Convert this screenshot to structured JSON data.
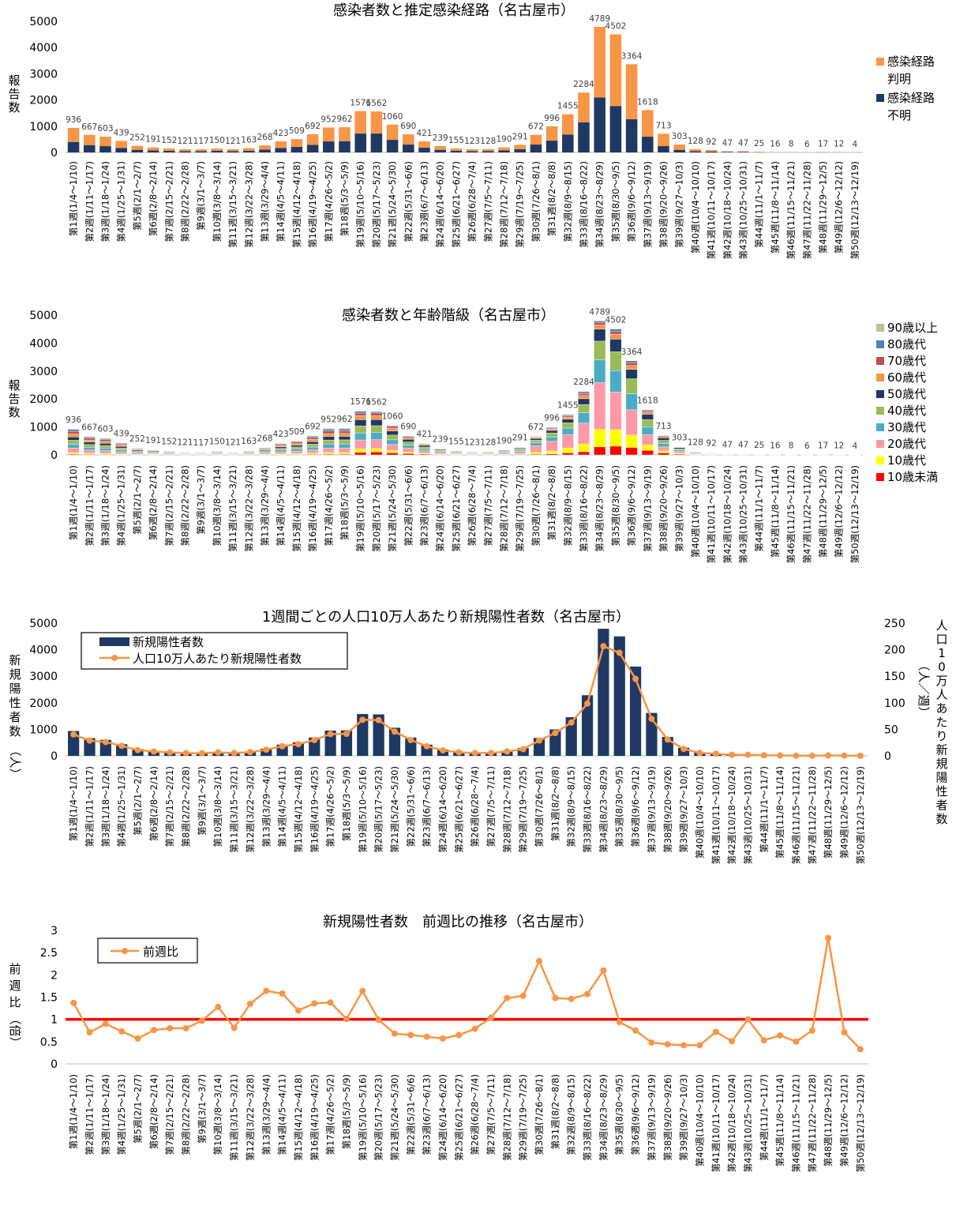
{
  "weeks": [
    "第1週(1/4～1/10)",
    "第2週(1/11～1/17)",
    "第3週(1/18～1/24)",
    "第4週(1/25～1/31)",
    "第5週(2/1～2/7)",
    "第6週(2/8～2/14)",
    "第7週(2/15～2/21)",
    "第8週(2/22～2/28)",
    "第9週(3/1～3/7)",
    "第10週(3/8～3/14)",
    "第11週(3/15～3/21)",
    "第12週(3/22～3/28)",
    "第13週(3/29～4/4)",
    "第14週(4/5～4/11)",
    "第15週(4/12～4/18)",
    "第16週(4/19～4/25)",
    "第17週(4/26～5/2)",
    "第18週(5/3～5/9)",
    "第19週(5/10～5/16)",
    "第20週(5/17～5/23)",
    "第21週(5/24～5/30)",
    "第22週(5/31～6/6)",
    "第23週(6/7～6/13)",
    "第24週(6/14～6/20)",
    "第25週(6/21～6/27)",
    "第26週(6/28～7/4)",
    "第27週(7/5～7/11)",
    "第28週(7/12～7/18)",
    "第29週(7/19～7/25)",
    "第30週(7/26～8/1)",
    "第31週(8/2～8/8)",
    "第32週(8/9～8/15)",
    "第33週(8/16～8/22)",
    "第34週(8/23～8/29)",
    "第35週(8/30～9/5)",
    "第36週(9/6～9/12)",
    "第37週(9/13～9/19)",
    "第38週(9/20～9/26)",
    "第39週(9/27～10/3)",
    "第40週(10/4～10/10)",
    "第41週(10/11～10/17)",
    "第42週(10/18～10/24)",
    "第43週(10/25～10/31)",
    "第44週(11/1～11/7)",
    "第45週(11/8～11/14)",
    "第46週(11/15～11/21)",
    "第47週(11/22～11/28)",
    "第48週(11/29～12/5)",
    "第49週(12/6～12/12)",
    "第50週(12/13～12/19)"
  ],
  "totals": [
    936,
    667,
    603,
    439,
    252,
    191,
    152,
    121,
    117,
    150,
    121,
    163,
    268,
    423,
    509,
    692,
    952,
    962,
    1576,
    1562,
    1060,
    690,
    421,
    239,
    155,
    123,
    128,
    190,
    291,
    672,
    996,
    1455,
    2284,
    4789,
    4502,
    3364,
    1618,
    713,
    303,
    128,
    92,
    47,
    47,
    25,
    16,
    8,
    6,
    17,
    12,
    4
  ],
  "chart_data": [
    {
      "type": "bar",
      "stacked": true,
      "title": "感染者数と推定感染経路（名古屋市）",
      "ylabel": "報告数",
      "ylim": [
        0,
        5000
      ],
      "yticks": [
        0,
        1000,
        2000,
        3000,
        4000,
        5000
      ],
      "legend_position": "right",
      "series": [
        {
          "name": "感染経路不明",
          "color": "#203864",
          "values": [
            400,
            280,
            240,
            170,
            100,
            80,
            60,
            50,
            45,
            60,
            50,
            65,
            110,
            170,
            210,
            290,
            420,
            430,
            720,
            720,
            480,
            300,
            180,
            100,
            65,
            50,
            55,
            80,
            120,
            300,
            450,
            680,
            1150,
            2100,
            1770,
            1270,
            600,
            240,
            100,
            45,
            32,
            16,
            15,
            8,
            5,
            3,
            2,
            6,
            4,
            1
          ]
        },
        {
          "name": "感染経路判明",
          "color": "#F79646",
          "values": [
            536,
            387,
            363,
            269,
            152,
            111,
            92,
            71,
            72,
            90,
            71,
            98,
            158,
            253,
            299,
            402,
            532,
            532,
            856,
            842,
            580,
            390,
            241,
            139,
            90,
            73,
            73,
            110,
            171,
            372,
            546,
            775,
            1134,
            2689,
            2732,
            2094,
            1018,
            473,
            203,
            83,
            60,
            31,
            32,
            17,
            11,
            5,
            4,
            11,
            8,
            3
          ]
        }
      ]
    },
    {
      "type": "bar",
      "stacked": true,
      "title": "感染者数と年齢階級（名古屋市）",
      "ylabel": "報告数",
      "ylim": [
        0,
        5000
      ],
      "yticks": [
        0,
        1000,
        2000,
        3000,
        4000,
        5000
      ],
      "legend_position": "right",
      "age_groups": [
        {
          "name": "10歳未満",
          "color": "#FF0000",
          "share": [
            0.03,
            0.03,
            0.03,
            0.03,
            0.03,
            0.03,
            0.03,
            0.03,
            0.03,
            0.03,
            0.03,
            0.03,
            0.03,
            0.03,
            0.03,
            0.03,
            0.03,
            0.03,
            0.06,
            0.07,
            0.07,
            0.07,
            0.07,
            0.06,
            0.06,
            0.06,
            0.06,
            0.06,
            0.06,
            0.04,
            0.04,
            0.05,
            0.05,
            0.06,
            0.07,
            0.08,
            0.1,
            0.1,
            0.1,
            0.1,
            0.1,
            0.1,
            0.1,
            0.1,
            0.1,
            0.1,
            0.1,
            0.1,
            0.1,
            0.1
          ]
        },
        {
          "name": "10歳代",
          "color": "#FFFF00",
          "share": [
            0.06,
            0.06,
            0.06,
            0.06,
            0.06,
            0.06,
            0.06,
            0.06,
            0.06,
            0.06,
            0.06,
            0.06,
            0.06,
            0.06,
            0.06,
            0.06,
            0.06,
            0.06,
            0.08,
            0.08,
            0.08,
            0.08,
            0.08,
            0.08,
            0.08,
            0.08,
            0.08,
            0.08,
            0.08,
            0.1,
            0.1,
            0.12,
            0.12,
            0.13,
            0.13,
            0.13,
            0.12,
            0.1,
            0.1,
            0.1,
            0.1,
            0.1,
            0.1,
            0.1,
            0.1,
            0.1,
            0.1,
            0.1,
            0.1,
            0.1
          ]
        },
        {
          "name": "20歳代",
          "color": "#FF99A8",
          "share": [
            0.17,
            0.17,
            0.17,
            0.17,
            0.17,
            0.17,
            0.17,
            0.17,
            0.17,
            0.17,
            0.17,
            0.17,
            0.17,
            0.17,
            0.17,
            0.17,
            0.17,
            0.17,
            0.2,
            0.2,
            0.2,
            0.2,
            0.2,
            0.22,
            0.22,
            0.22,
            0.22,
            0.25,
            0.28,
            0.35,
            0.35,
            0.33,
            0.33,
            0.35,
            0.3,
            0.27,
            0.23,
            0.2,
            0.2,
            0.2,
            0.2,
            0.2,
            0.2,
            0.2,
            0.2,
            0.2,
            0.2,
            0.2,
            0.2,
            0.2
          ]
        },
        {
          "name": "30歳代",
          "color": "#4BACC6",
          "share": [
            0.15,
            0.15,
            0.15,
            0.15,
            0.15,
            0.15,
            0.15,
            0.15,
            0.15,
            0.15,
            0.15,
            0.15,
            0.15,
            0.15,
            0.15,
            0.15,
            0.15,
            0.15,
            0.16,
            0.16,
            0.16,
            0.16,
            0.16,
            0.16,
            0.16,
            0.16,
            0.16,
            0.16,
            0.16,
            0.16,
            0.16,
            0.16,
            0.16,
            0.17,
            0.17,
            0.17,
            0.17,
            0.17,
            0.17,
            0.17,
            0.17,
            0.17,
            0.17,
            0.17,
            0.17,
            0.17,
            0.17,
            0.17,
            0.17,
            0.17
          ]
        },
        {
          "name": "40歳代",
          "color": "#9BBB59",
          "share": [
            0.15,
            0.15,
            0.15,
            0.15,
            0.15,
            0.15,
            0.15,
            0.15,
            0.15,
            0.15,
            0.15,
            0.15,
            0.15,
            0.15,
            0.15,
            0.15,
            0.15,
            0.15,
            0.16,
            0.16,
            0.16,
            0.16,
            0.16,
            0.16,
            0.16,
            0.16,
            0.16,
            0.16,
            0.16,
            0.14,
            0.14,
            0.13,
            0.13,
            0.14,
            0.15,
            0.16,
            0.16,
            0.16,
            0.16,
            0.16,
            0.16,
            0.16,
            0.16,
            0.16,
            0.16,
            0.16,
            0.16,
            0.16,
            0.16,
            0.16
          ]
        },
        {
          "name": "50歳代",
          "color": "#1F3864",
          "share": [
            0.13,
            0.13,
            0.13,
            0.13,
            0.13,
            0.13,
            0.13,
            0.13,
            0.13,
            0.13,
            0.13,
            0.13,
            0.13,
            0.13,
            0.13,
            0.13,
            0.13,
            0.13,
            0.14,
            0.14,
            0.14,
            0.14,
            0.14,
            0.14,
            0.14,
            0.14,
            0.14,
            0.12,
            0.11,
            0.09,
            0.09,
            0.09,
            0.09,
            0.09,
            0.1,
            0.1,
            0.12,
            0.13,
            0.13,
            0.13,
            0.13,
            0.13,
            0.13,
            0.13,
            0.13,
            0.13,
            0.13,
            0.13,
            0.13,
            0.13
          ]
        },
        {
          "name": "60歳代",
          "color": "#F79646",
          "share": [
            0.11,
            0.11,
            0.11,
            0.11,
            0.11,
            0.11,
            0.11,
            0.11,
            0.11,
            0.11,
            0.11,
            0.11,
            0.11,
            0.11,
            0.11,
            0.11,
            0.11,
            0.11,
            0.09,
            0.09,
            0.09,
            0.09,
            0.09,
            0.08,
            0.08,
            0.08,
            0.08,
            0.07,
            0.06,
            0.05,
            0.05,
            0.05,
            0.05,
            0.03,
            0.04,
            0.04,
            0.05,
            0.06,
            0.06,
            0.06,
            0.06,
            0.06,
            0.06,
            0.06,
            0.06,
            0.06,
            0.06,
            0.06,
            0.06,
            0.06
          ]
        },
        {
          "name": "70歳代",
          "color": "#C0504D",
          "share": [
            0.1,
            0.1,
            0.1,
            0.1,
            0.1,
            0.1,
            0.1,
            0.1,
            0.1,
            0.1,
            0.1,
            0.1,
            0.1,
            0.1,
            0.1,
            0.1,
            0.1,
            0.1,
            0.06,
            0.06,
            0.06,
            0.06,
            0.06,
            0.05,
            0.05,
            0.05,
            0.05,
            0.05,
            0.04,
            0.03,
            0.03,
            0.03,
            0.03,
            0.02,
            0.02,
            0.03,
            0.03,
            0.04,
            0.04,
            0.04,
            0.04,
            0.04,
            0.04,
            0.04,
            0.04,
            0.04,
            0.04,
            0.04,
            0.04,
            0.04
          ]
        },
        {
          "name": "80歳代",
          "color": "#4F81BD",
          "share": [
            0.07,
            0.07,
            0.07,
            0.07,
            0.07,
            0.07,
            0.07,
            0.07,
            0.07,
            0.07,
            0.07,
            0.07,
            0.07,
            0.07,
            0.07,
            0.07,
            0.07,
            0.07,
            0.04,
            0.03,
            0.03,
            0.03,
            0.03,
            0.04,
            0.04,
            0.04,
            0.04,
            0.04,
            0.04,
            0.03,
            0.03,
            0.03,
            0.03,
            0.01,
            0.02,
            0.02,
            0.02,
            0.03,
            0.03,
            0.03,
            0.03,
            0.03,
            0.03,
            0.03,
            0.03,
            0.03,
            0.03,
            0.03,
            0.03,
            0.03
          ]
        },
        {
          "name": "90歳以上",
          "color": "#C4BD97",
          "share": [
            0.03,
            0.03,
            0.03,
            0.03,
            0.03,
            0.03,
            0.03,
            0.03,
            0.03,
            0.03,
            0.03,
            0.03,
            0.03,
            0.03,
            0.03,
            0.03,
            0.03,
            0.03,
            0.01,
            0.01,
            0.01,
            0.01,
            0.01,
            0.01,
            0.01,
            0.01,
            0.01,
            0.01,
            0.01,
            0.01,
            0.01,
            0.01,
            0.01,
            0.0,
            0.0,
            0.0,
            0.0,
            0.01,
            0.01,
            0.01,
            0.01,
            0.01,
            0.01,
            0.01,
            0.01,
            0.01,
            0.01,
            0.01,
            0.01,
            0.01
          ]
        }
      ]
    },
    {
      "type": "bar",
      "title": "1週間ごとの人口10万人あたり新規陽性者数（名古屋市）",
      "ylabel": "新規陽性者数（人）",
      "y2label": "人口10万人あたり新規陽性者数（人／週）",
      "ylim": [
        0,
        5000
      ],
      "y2lim": [
        0,
        250
      ],
      "yticks": [
        0,
        1000,
        2000,
        3000,
        4000,
        5000
      ],
      "y2ticks": [
        0,
        50,
        100,
        150,
        200,
        250
      ],
      "legend_position": "top-left",
      "series": [
        {
          "name": "新規陽性者数",
          "type": "bar",
          "color": "#203864",
          "axis": "left"
        },
        {
          "name": "人口10万人あたり新規陽性者数",
          "type": "line",
          "color": "#F79646",
          "axis": "right",
          "values": [
            40.4,
            28.8,
            26.0,
            18.9,
            10.9,
            8.2,
            6.6,
            5.2,
            5.0,
            6.5,
            5.2,
            7.0,
            11.6,
            18.2,
            22.0,
            29.8,
            41.1,
            41.5,
            68.0,
            67.4,
            45.7,
            29.8,
            18.2,
            10.3,
            6.7,
            5.3,
            5.5,
            8.2,
            12.6,
            29.0,
            43.0,
            62.8,
            98.5,
            206.6,
            194.2,
            145.1,
            69.8,
            30.8,
            13.1,
            5.5,
            4.0,
            2.0,
            2.0,
            1.1,
            0.7,
            0.3,
            0.3,
            0.7,
            0.5,
            0.2
          ]
        }
      ]
    },
    {
      "type": "line",
      "title": "新規陽性者数　前週比の推移（名古屋市）",
      "ylabel": "前週比（倍）",
      "ylim": [
        0,
        3
      ],
      "yticks": [
        0,
        0.5,
        1,
        1.5,
        2,
        2.5,
        3
      ],
      "reference_line": 1,
      "legend_position": "top-left",
      "series": [
        {
          "name": "前週比",
          "color": "#F79646",
          "values": [
            1.37,
            0.71,
            0.9,
            0.73,
            0.57,
            0.76,
            0.8,
            0.8,
            0.97,
            1.28,
            0.81,
            1.35,
            1.64,
            1.58,
            1.2,
            1.36,
            1.38,
            1.01,
            1.64,
            0.99,
            0.68,
            0.65,
            0.61,
            0.57,
            0.65,
            0.79,
            1.04,
            1.48,
            1.53,
            2.31,
            1.48,
            1.46,
            1.57,
            2.1,
            0.94,
            0.75,
            0.48,
            0.44,
            0.42,
            0.42,
            0.72,
            0.51,
            1.0,
            0.53,
            0.64,
            0.5,
            0.75,
            2.83,
            0.71,
            0.33
          ]
        }
      ]
    }
  ]
}
